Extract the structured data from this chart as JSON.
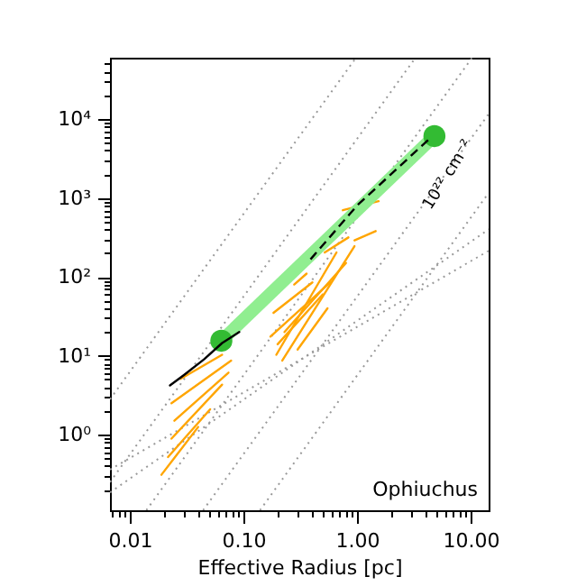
{
  "chart_data": {
    "type": "line",
    "xlabel": "Effective Radius  [pc]",
    "log": "xy",
    "grid": false,
    "xlim": [
      0.0067,
      14.4
    ],
    "ylim": [
      0.11,
      60000
    ],
    "xticks": [
      {
        "value": 0.007,
        "label": null
      },
      {
        "value": 0.008,
        "label": null
      },
      {
        "value": 0.009,
        "label": null
      },
      {
        "value": 0.01,
        "label": "0.01"
      },
      {
        "value": 0.02,
        "label": null
      },
      {
        "value": 0.03,
        "label": null
      },
      {
        "value": 0.04,
        "label": null
      },
      {
        "value": 0.05,
        "label": null
      },
      {
        "value": 0.06,
        "label": null
      },
      {
        "value": 0.07,
        "label": null
      },
      {
        "value": 0.08,
        "label": null
      },
      {
        "value": 0.09,
        "label": null
      },
      {
        "value": 0.1,
        "label": "0.10"
      },
      {
        "value": 0.2,
        "label": null
      },
      {
        "value": 0.3,
        "label": null
      },
      {
        "value": 0.4,
        "label": null
      },
      {
        "value": 0.5,
        "label": null
      },
      {
        "value": 0.6,
        "label": null
      },
      {
        "value": 0.7,
        "label": null
      },
      {
        "value": 0.8,
        "label": null
      },
      {
        "value": 0.9,
        "label": null
      },
      {
        "value": 1,
        "label": "1.00"
      },
      {
        "value": 2,
        "label": null
      },
      {
        "value": 3,
        "label": null
      },
      {
        "value": 4,
        "label": null
      },
      {
        "value": 5,
        "label": null
      },
      {
        "value": 6,
        "label": null
      },
      {
        "value": 7,
        "label": null
      },
      {
        "value": 8,
        "label": null
      },
      {
        "value": 9,
        "label": null
      },
      {
        "value": 10,
        "label": "10.00"
      }
    ],
    "yticks": [
      {
        "value": 0.2,
        "label": null
      },
      {
        "value": 0.3,
        "label": null
      },
      {
        "value": 0.4,
        "label": null
      },
      {
        "value": 0.5,
        "label": null
      },
      {
        "value": 0.6,
        "label": null
      },
      {
        "value": 0.7,
        "label": null
      },
      {
        "value": 0.8,
        "label": null
      },
      {
        "value": 0.9,
        "label": null
      },
      {
        "value": 1,
        "label": "10⁰"
      },
      {
        "value": 2,
        "label": null
      },
      {
        "value": 3,
        "label": null
      },
      {
        "value": 4,
        "label": null
      },
      {
        "value": 5,
        "label": null
      },
      {
        "value": 6,
        "label": null
      },
      {
        "value": 7,
        "label": null
      },
      {
        "value": 8,
        "label": null
      },
      {
        "value": 9,
        "label": null
      },
      {
        "value": 10,
        "label": "10¹"
      },
      {
        "value": 20,
        "label": null
      },
      {
        "value": 30,
        "label": null
      },
      {
        "value": 40,
        "label": null
      },
      {
        "value": 50,
        "label": null
      },
      {
        "value": 60,
        "label": null
      },
      {
        "value": 70,
        "label": null
      },
      {
        "value": 80,
        "label": null
      },
      {
        "value": 90,
        "label": null
      },
      {
        "value": 100,
        "label": "10²"
      },
      {
        "value": 200,
        "label": null
      },
      {
        "value": 300,
        "label": null
      },
      {
        "value": 400,
        "label": null
      },
      {
        "value": 500,
        "label": null
      },
      {
        "value": 600,
        "label": null
      },
      {
        "value": 700,
        "label": null
      },
      {
        "value": 800,
        "label": null
      },
      {
        "value": 900,
        "label": null
      },
      {
        "value": 1000,
        "label": "10³"
      },
      {
        "value": 2000,
        "label": null
      },
      {
        "value": 3000,
        "label": null
      },
      {
        "value": 4000,
        "label": null
      },
      {
        "value": 5000,
        "label": null
      },
      {
        "value": 6000,
        "label": null
      },
      {
        "value": 7000,
        "label": null
      },
      {
        "value": 8000,
        "label": null
      },
      {
        "value": 9000,
        "label": null
      },
      {
        "value": 10000,
        "label": "10⁴"
      },
      {
        "value": 20000,
        "label": null
      },
      {
        "value": 30000,
        "label": null
      },
      {
        "value": 40000,
        "label": null
      },
      {
        "value": 50000,
        "label": null
      }
    ],
    "annotations": [
      "Ophiuchus",
      {
        "text": "10²² cm⁻²",
        "x": 6.2,
        "y": 2000
      }
    ],
    "series": [
      {
        "line_style": "dotted",
        "color": "#999999",
        "x": [
          0.0067,
          0.98
        ],
        "values": [
          2.8,
          60000
        ]
      },
      {
        "line_style": "dotted",
        "color": "#999999",
        "x": [
          0.0067,
          3.27
        ],
        "values": [
          0.25,
          60000
        ]
      },
      {
        "line_style": "dotted",
        "color": "#999999",
        "x": [
          0.014,
          10.3
        ],
        "values": [
          0.11,
          60000
        ]
      },
      {
        "line_style": "dotted",
        "color": "#999999",
        "x": [
          0.0442,
          14.4
        ],
        "values": [
          0.11,
          11600
        ]
      },
      {
        "line_style": "dotted",
        "color": "#999999",
        "x": [
          0.14,
          14.4
        ],
        "values": [
          0.11,
          1160
        ]
      },
      {
        "line_style": "dotted",
        "color": "#999999",
        "x": [
          0.0067,
          14.4
        ],
        "values": [
          0.185,
          400
        ]
      },
      {
        "line_style": "dotted",
        "color": "#999999",
        "x": [
          0.0067,
          14.4
        ],
        "values": [
          0.36,
          214
        ]
      },
      {
        "line_style": "solid",
        "color": "#ffa500",
        "x": [
          0.019,
          0.04
        ],
        "values": [
          0.31,
          1.25
        ]
      },
      {
        "line_style": "solid",
        "color": "#ffa500",
        "x": [
          0.0217,
          0.051
        ],
        "values": [
          0.52,
          2.1
        ]
      },
      {
        "line_style": "solid",
        "color": "#ffa500",
        "x": [
          0.0233,
          0.065
        ],
        "values": [
          0.89,
          4.3
        ]
      },
      {
        "line_style": "solid",
        "color": "#ffa500",
        "x": [
          0.0247,
          0.074
        ],
        "values": [
          1.5,
          6.1
        ]
      },
      {
        "line_style": "solid",
        "color": "#ffa500",
        "x": [
          0.0233,
          0.078
        ],
        "values": [
          2.5,
          8.7
        ]
      },
      {
        "line_style": "solid",
        "color": "#ffa500",
        "x": [
          0.028,
          0.065
        ],
        "values": [
          5.1,
          10.3
        ]
      },
      {
        "line_style": "solid",
        "color": "#ffa500",
        "x": [
          0.195,
          0.66
        ],
        "values": [
          10.3,
          204
        ]
      },
      {
        "line_style": "solid",
        "color": "#ffa500",
        "x": [
          0.22,
          0.95
        ],
        "values": [
          8.7,
          245
        ]
      },
      {
        "line_style": "solid",
        "color": "#ffa500",
        "x": [
          0.173,
          0.58
        ],
        "values": [
          17.5,
          85
        ]
      },
      {
        "line_style": "solid",
        "color": "#ffa500",
        "x": [
          0.184,
          0.405
        ],
        "values": [
          35,
          85
        ]
      },
      {
        "line_style": "solid",
        "color": "#ffa500",
        "x": [
          0.28,
          0.36
        ],
        "values": [
          80,
          110
        ]
      },
      {
        "line_style": "solid",
        "color": "#ffa500",
        "x": [
          0.52,
          0.84
        ],
        "values": [
          204,
          316
        ]
      },
      {
        "line_style": "solid",
        "color": "#ffa500",
        "x": [
          0.95,
          1.46
        ],
        "values": [
          290,
          380
        ]
      },
      {
        "line_style": "solid",
        "color": "#ffa500",
        "x": [
          0.75,
          1.55
        ],
        "values": [
          700,
          910
        ]
      },
      {
        "line_style": "solid",
        "color": "#ffa500",
        "x": [
          0.2,
          0.5
        ],
        "values": [
          14,
          60
        ]
      },
      {
        "line_style": "solid",
        "color": "#ffa500",
        "x": [
          0.23,
          0.8
        ],
        "values": [
          20,
          150
        ]
      },
      {
        "line_style": "solid",
        "color": "#ffa500",
        "x": [
          0.3,
          0.55
        ],
        "values": [
          12,
          40
        ]
      },
      {
        "line_style": "solid",
        "color": "#90ee90",
        "x": [
          0.064,
          4.8
        ],
        "values": [
          15.5,
          6100
        ]
      },
      {
        "type": "scatter",
        "marker": "circle",
        "color": "#33bb33",
        "x": [
          0.064,
          4.8
        ],
        "values": [
          15.5,
          6100
        ]
      },
      {
        "line_style": "solid",
        "color": "#000000",
        "x": [
          0.0226,
          0.03,
          0.045,
          0.065,
          0.092
        ],
        "values": [
          4.2,
          5.7,
          9,
          14.5,
          20
        ]
      },
      {
        "line_style": "dashed",
        "color": "#000000",
        "x": [
          0.39,
          1.0,
          4.5
        ],
        "values": [
          167,
          800,
          5900
        ]
      }
    ]
  }
}
